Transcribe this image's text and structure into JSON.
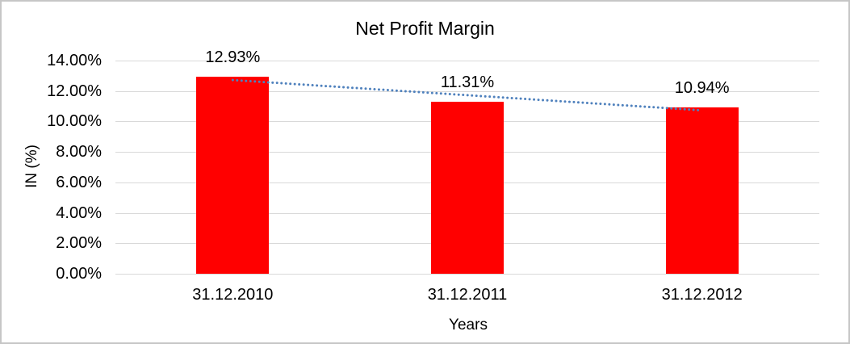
{
  "chart_data": {
    "type": "bar",
    "title": "Net Profit Margin",
    "xlabel": "Years",
    "ylabel": "IN (%)",
    "categories": [
      "31.12.2010",
      "31.12.2011",
      "31.12.2012"
    ],
    "values": [
      12.93,
      11.31,
      10.94
    ],
    "data_labels": [
      "12.93%",
      "11.31%",
      "10.94%"
    ],
    "y_ticks": [
      {
        "label": "14.00%",
        "value": 14
      },
      {
        "label": "12.00%",
        "value": 12
      },
      {
        "label": "10.00%",
        "value": 10
      },
      {
        "label": "8.00%",
        "value": 8
      },
      {
        "label": "6.00%",
        "value": 6
      },
      {
        "label": "4.00%",
        "value": 4
      },
      {
        "label": "2.00%",
        "value": 2
      },
      {
        "label": "0.00%",
        "value": 0
      }
    ],
    "ylim": [
      0,
      14
    ],
    "grid": true,
    "legend": "none",
    "colors": {
      "bar": "#ff0000",
      "trendline": "#4f81bd",
      "gridline": "#d9d9d9",
      "text": "#000000",
      "frame_border": "#c6c6c6"
    },
    "trendline": {
      "type": "linear",
      "style": "dotted",
      "start_value": 12.72,
      "end_value": 10.73
    }
  }
}
